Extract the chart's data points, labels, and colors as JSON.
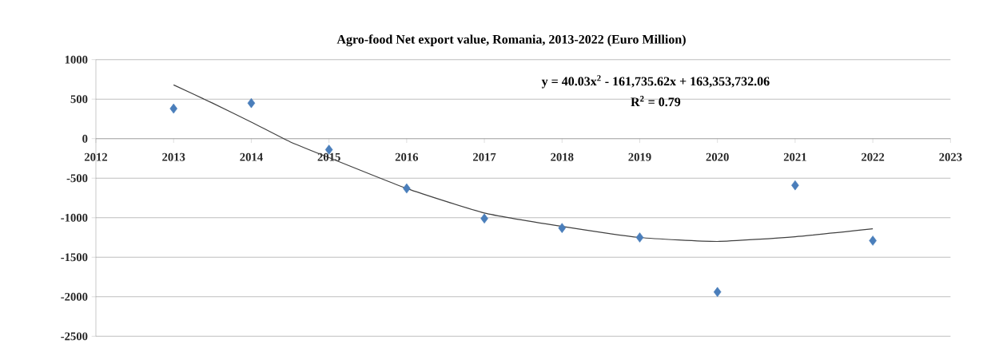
{
  "chart_data": {
    "type": "scatter",
    "title": "Agro-food Net export value, Romania, 2013-2022 (Euro Million)",
    "x": [
      2013,
      2014,
      2015,
      2016,
      2017,
      2018,
      2019,
      2020,
      2021,
      2022
    ],
    "series": [
      {
        "color": "#4a7ebb",
        "marker": "diamond",
        "values": [
          380,
          450,
          -140,
          -630,
          -1010,
          -1130,
          -1250,
          -1940,
          -590,
          -1290
        ]
      },
      {
        "type": "line",
        "color": "#404040",
        "marker": "none",
        "line_style": "solid",
        "x": [
          2013,
          2013.5,
          2014,
          2014.5,
          2015,
          2016,
          2017,
          2018,
          2019,
          2020,
          2021,
          2022
        ],
        "values": [
          680,
          450,
          210,
          -40,
          -240,
          -630,
          -940,
          -1110,
          -1250,
          -1300,
          -1240,
          -1140
        ]
      }
    ],
    "annotations": [
      "y = 40.03x$^{2}$ - 161,735.62x + 163,353,732.06",
      "R$^{2}$ = 0.79"
    ],
    "xlim": [
      2012,
      2023
    ],
    "xticks": [
      2012,
      2013,
      2014,
      2015,
      2016,
      2017,
      2018,
      2019,
      2020,
      2021,
      2022,
      2023
    ],
    "ylim": [
      -2500,
      1000
    ],
    "yticks": [
      -2500,
      -2000,
      -1500,
      -1000,
      -500,
      0,
      500,
      1000
    ],
    "grid": "y"
  }
}
